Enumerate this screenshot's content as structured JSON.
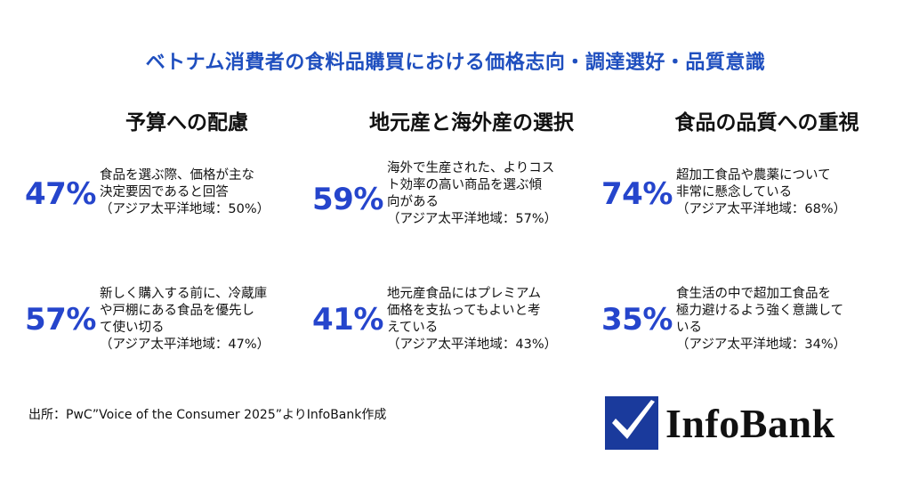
{
  "title": "ベトナム消費者の食料品購買における価格志向・調達選好・品質意識",
  "columns": [
    {
      "heading": "予算への配慮",
      "stats": [
        {
          "percent": "47%",
          "lines": [
            "食品を選ぶ際、価格が主な",
            "決定要因であると回答",
            "（アジア太平洋地域：50%）"
          ]
        },
        {
          "percent": "57%",
          "lines": [
            "新しく購入する前に、冷蔵庫",
            "や戸棚にある食品を優先し",
            "て使い切る",
            "（アジア太平洋地域：47%）"
          ]
        }
      ]
    },
    {
      "heading": "地元産と海外産の選択",
      "stats": [
        {
          "percent": "59%",
          "lines": [
            "海外で生産された、よりコス",
            "ト効率の高い商品を選ぶ傾",
            "向がある",
            "（アジア太平洋地域：57%）"
          ]
        },
        {
          "percent": "41%",
          "lines": [
            "地元産食品にはプレミアム",
            "価格を支払ってもよいと考",
            "えている",
            "（アジア太平洋地域：43%）"
          ]
        }
      ]
    },
    {
      "heading": "食品の品質への重視",
      "stats": [
        {
          "percent": "74%",
          "lines": [
            "超加工食品や農薬について",
            "非常に懸念している",
            "（アジア太平洋地域：68%）"
          ]
        },
        {
          "percent": "35%",
          "lines": [
            "食生活の中で超加工食品を",
            "極力避けるよう強く意識して",
            "いる",
            "（アジア太平洋地域：34%）"
          ]
        }
      ]
    }
  ],
  "source": "出所：PwC”Voice of the Consumer 2025”よりInfoBank作成",
  "logo": {
    "text": "InfoBank",
    "mark_color": "#1a3a9c",
    "check_icon": "checkmark-icon"
  },
  "colors": {
    "title": "#1f4fbf",
    "percent": "#2545cc"
  }
}
